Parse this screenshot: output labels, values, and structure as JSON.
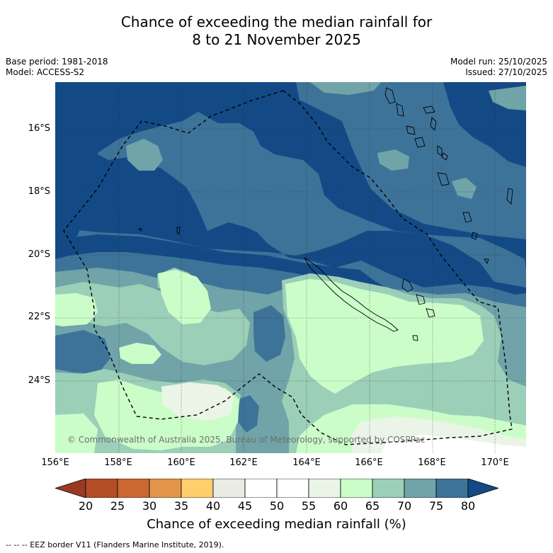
{
  "header": {
    "title_line1": "Chance of exceeding the median rainfall for",
    "title_line2": "8 to 21 November 2025",
    "base_period": "Base period: 1981-2018",
    "model": "Model: ACCESS-S2",
    "model_run": "Model run: 25/10/2025",
    "issued": "Issued: 27/10/2025"
  },
  "map": {
    "lat_labels": [
      "16°S",
      "18°S",
      "20°S",
      "22°S",
      "24°S"
    ],
    "lon_labels": [
      "156°E",
      "158°E",
      "160°E",
      "162°E",
      "164°E",
      "166°E",
      "168°E",
      "170°E"
    ],
    "copyright": "© Commonwealth of Australia 2025, Bureau of Meteorology, supported by COSPPac",
    "colors": {
      "bin_75_80": "#134a86",
      "bin_70_75": "#3e7399",
      "bin_65_70": "#70a4a8",
      "bin_60_65": "#9ccfb8",
      "bin_55_60": "#cbfdc8",
      "bin_50_55": "#eaf5e8",
      "bin_45_50": "#ffffff"
    }
  },
  "colorbar": {
    "ticks": [
      "20",
      "25",
      "30",
      "35",
      "40",
      "45",
      "50",
      "55",
      "60",
      "65",
      "70",
      "75",
      "80"
    ],
    "label": "Chance of exceeding median rainfall (%)",
    "colors": [
      "#9b3924",
      "#b34e26",
      "#cb6834",
      "#e3954b",
      "#fecf6d",
      "#ebebe6",
      "#ffffff",
      "#ffffff",
      "#eaf5e8",
      "#cbfdc8",
      "#9ccfb8",
      "#70a4a8",
      "#3e7399",
      "#134a86"
    ]
  },
  "footnote": "-- -- -- EEZ border V11 (Flanders Marine Institute, 2019)."
}
